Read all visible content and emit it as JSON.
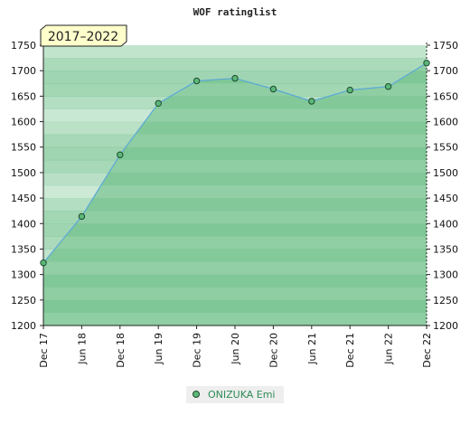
{
  "chart_data": {
    "type": "area",
    "title": "WOF ratinglist",
    "period_label": "2017–2022",
    "categories": [
      "Dec 17",
      "Jun 18",
      "Dec 18",
      "Jun 19",
      "Dec 19",
      "Jun 20",
      "Dec 20",
      "Jun 21",
      "Dec 21",
      "Jun 22",
      "Dec 22"
    ],
    "series": [
      {
        "name": "ONIZUKA Emi",
        "values": [
          1323,
          1414,
          1535,
          1636,
          1680,
          1685,
          1664,
          1640,
          1662,
          1669,
          1715
        ]
      }
    ],
    "ylim": [
      1200,
      1750
    ],
    "yticks": [
      1200,
      1250,
      1300,
      1350,
      1400,
      1450,
      1500,
      1550,
      1600,
      1650,
      1700,
      1750
    ],
    "xlabel": "",
    "ylabel": "",
    "grid": true,
    "legend_position": "bottom-center",
    "colors": {
      "fill": "#7cc594",
      "line": "#5aa8d8",
      "marker_fill": "#5bb878",
      "marker_stroke": "#1e4a2e",
      "band_dark": "#6cbd89",
      "band_light": "#dff2e4",
      "badge_bg": "#ffffcc"
    }
  }
}
